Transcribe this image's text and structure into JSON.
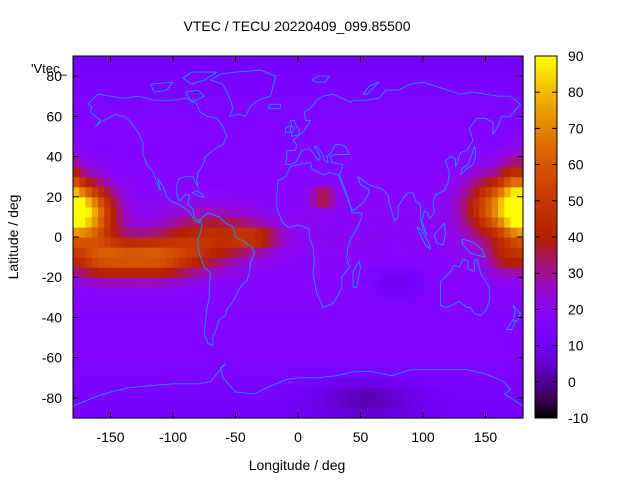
{
  "chart_data": {
    "type": "heatmap",
    "title": "VTEC / TECU 20220409_099.85500",
    "xlabel": "Longitude / deg",
    "ylabel": "Latitude / deg",
    "key_label": "'Vtec_",
    "xlim": [
      -180,
      180
    ],
    "ylim": [
      -90,
      90
    ],
    "x_ticks": [
      -150,
      -100,
      -50,
      0,
      50,
      100,
      150
    ],
    "y_ticks": [
      -80,
      -60,
      -40,
      -20,
      0,
      20,
      40,
      60,
      80
    ],
    "colorbar": {
      "range": [
        -10,
        90
      ],
      "ticks": [
        -10,
        0,
        10,
        20,
        30,
        40,
        50,
        60,
        70,
        80,
        90
      ]
    },
    "grid_step_deg": 5,
    "overlay": "coastlines",
    "colors": {
      "coastline": "#1e90ff",
      "background": "#ffffff"
    },
    "features": [
      {
        "lon": -170,
        "lat": 12,
        "amp": 60,
        "slon": 22,
        "slat": 14
      },
      {
        "lon": -120,
        "lat": -10,
        "amp": 42,
        "slon": 40,
        "slat": 10
      },
      {
        "lon": -160,
        "lat": -10,
        "amp": 22,
        "slon": 22,
        "slat": 10
      },
      {
        "lon": -70,
        "lat": 0,
        "amp": 25,
        "slon": 35,
        "slat": 12
      },
      {
        "lon": -35,
        "lat": 0,
        "amp": 22,
        "slon": 20,
        "slat": 6
      },
      {
        "lon": 20,
        "lat": 20,
        "amp": 22,
        "slon": 10,
        "slat": 5
      },
      {
        "lon": 160,
        "lat": 15,
        "amp": 45,
        "slon": 25,
        "slat": 15
      },
      {
        "lon": 175,
        "lat": 20,
        "amp": 25,
        "slon": 12,
        "slat": 20
      },
      {
        "lon": 165,
        "lat": -10,
        "amp": 15,
        "slon": 15,
        "slat": 8
      },
      {
        "lon": 80,
        "lat": -22,
        "amp": -8,
        "slon": 25,
        "slat": 10
      },
      {
        "lon": 55,
        "lat": -80,
        "amp": -10,
        "slon": 40,
        "slat": 10
      }
    ],
    "background_level": {
      "base": 15,
      "low_lat_extra": 4,
      "polar_drop": 4
    }
  }
}
